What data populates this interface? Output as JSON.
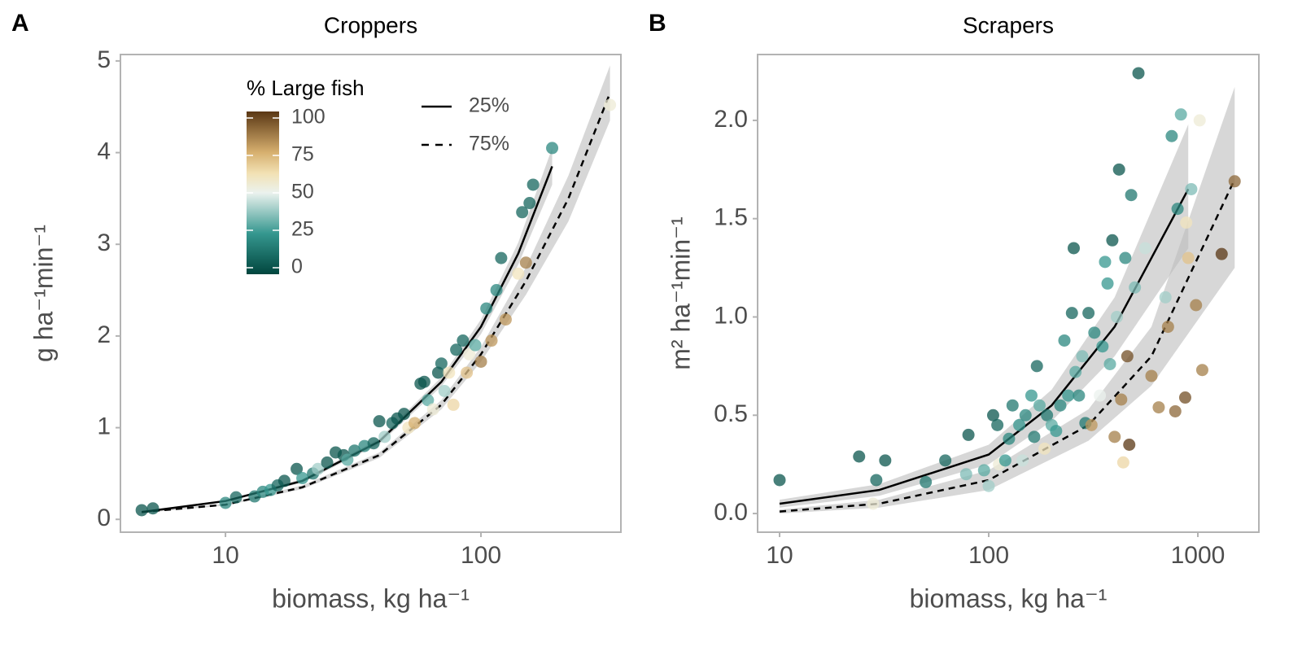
{
  "chart_data": [
    {
      "type": "scatter",
      "panel": "A",
      "title": "Croppers",
      "xlabel": "biomass, kg ha⁻¹",
      "ylabel": "g ha⁻¹min⁻¹",
      "xscale": "log",
      "xlim": [
        3.88,
        353
      ],
      "xticks": [
        10,
        100
      ],
      "ylim": [
        -0.14,
        5.07
      ],
      "yticks": [
        0,
        1,
        2,
        3,
        4,
        5
      ],
      "colorbar": {
        "title": "% Large fish",
        "lim": [
          0,
          100
        ],
        "ticks": [
          0,
          25,
          50,
          75,
          100
        ]
      },
      "points": {
        "x": [
          4.7,
          5.2,
          10,
          11,
          13,
          14,
          15,
          16,
          17,
          19,
          20,
          22,
          23,
          25,
          27,
          29,
          30,
          32,
          35,
          38,
          40,
          42,
          45,
          47,
          50,
          52,
          55,
          58,
          60,
          62,
          65,
          68,
          70,
          72,
          75,
          78,
          80,
          85,
          88,
          90,
          95,
          100,
          105,
          110,
          115,
          120,
          125,
          140,
          145,
          150,
          155,
          160,
          190,
          320
        ],
        "y": [
          0.1,
          0.12,
          0.18,
          0.24,
          0.25,
          0.3,
          0.32,
          0.37,
          0.42,
          0.55,
          0.45,
          0.5,
          0.55,
          0.62,
          0.73,
          0.7,
          0.65,
          0.75,
          0.8,
          0.83,
          1.07,
          0.9,
          1.05,
          1.1,
          1.15,
          1.0,
          1.05,
          1.48,
          1.5,
          1.3,
          1.2,
          1.6,
          1.7,
          1.4,
          1.6,
          1.25,
          1.85,
          1.95,
          1.6,
          1.8,
          1.9,
          1.72,
          2.3,
          1.95,
          2.5,
          2.85,
          2.18,
          2.68,
          3.35,
          2.8,
          3.45,
          3.65,
          4.05,
          4.52
        ],
        "large_fish": [
          5,
          5,
          20,
          10,
          15,
          20,
          25,
          10,
          5,
          5,
          25,
          15,
          40,
          5,
          5,
          5,
          30,
          15,
          20,
          10,
          5,
          40,
          10,
          5,
          5,
          60,
          75,
          5,
          5,
          30,
          55,
          5,
          10,
          40,
          60,
          65,
          10,
          10,
          70,
          55,
          30,
          85,
          20,
          80,
          20,
          10,
          80,
          60,
          10,
          85,
          10,
          10,
          20,
          55
        ]
      },
      "fits": [
        {
          "name": "25%",
          "dash": false,
          "x": [
            4.7,
            10,
            20,
            40,
            70,
            100,
            140,
            190
          ],
          "y": [
            0.08,
            0.2,
            0.42,
            0.85,
            1.5,
            2.1,
            2.9,
            3.85
          ],
          "lower": [
            0.07,
            0.19,
            0.4,
            0.82,
            1.45,
            2.02,
            2.78,
            3.65
          ],
          "upper": [
            0.09,
            0.21,
            0.44,
            0.88,
            1.55,
            2.18,
            3.02,
            4.05
          ]
        },
        {
          "name": "75%",
          "dash": true,
          "x": [
            4.7,
            10,
            20,
            40,
            70,
            100,
            150,
            220,
            320
          ],
          "y": [
            0.08,
            0.16,
            0.35,
            0.7,
            1.25,
            1.8,
            2.6,
            3.5,
            4.65
          ],
          "lower": [
            0.07,
            0.15,
            0.33,
            0.67,
            1.2,
            1.72,
            2.45,
            3.25,
            4.35
          ],
          "upper": [
            0.09,
            0.17,
            0.37,
            0.73,
            1.3,
            1.88,
            2.75,
            3.75,
            4.95
          ]
        }
      ]
    },
    {
      "type": "scatter",
      "panel": "B",
      "title": "Scrapers",
      "xlabel": "biomass, kg ha⁻¹",
      "ylabel": "m² ha⁻¹min⁻¹",
      "xscale": "log",
      "xlim": [
        7.85,
        1958
      ],
      "xticks": [
        10,
        100,
        1000
      ],
      "ylim": [
        -0.095,
        2.335
      ],
      "yticks": [
        {
          "value": 0,
          "label": "0.0"
        },
        0.5,
        {
          "value": 1,
          "label": "1.0"
        },
        1.5,
        {
          "value": 2,
          "label": "2.0"
        }
      ],
      "points": {
        "x": [
          10,
          24,
          29,
          32,
          50,
          62,
          80,
          78,
          95,
          100,
          105,
          110,
          112,
          120,
          125,
          130,
          140,
          145,
          150,
          160,
          165,
          170,
          175,
          185,
          190,
          200,
          210,
          220,
          230,
          240,
          250,
          255,
          260,
          270,
          280,
          290,
          300,
          310,
          320,
          340,
          350,
          360,
          370,
          380,
          390,
          400,
          410,
          420,
          430,
          440,
          450,
          460,
          470,
          480,
          500,
          520,
          560,
          600,
          650,
          700,
          720,
          750,
          780,
          800,
          830,
          870,
          880,
          900,
          930,
          980,
          1020,
          1050,
          1300,
          1500,
          28
        ],
        "y": [
          0.17,
          0.29,
          0.17,
          0.27,
          0.16,
          0.27,
          0.4,
          0.2,
          0.22,
          0.14,
          0.5,
          0.45,
          0.25,
          0.27,
          0.38,
          0.55,
          0.45,
          0.27,
          0.5,
          0.6,
          0.39,
          0.75,
          0.55,
          0.33,
          0.5,
          0.45,
          0.42,
          0.55,
          0.88,
          0.6,
          1.02,
          1.35,
          0.72,
          0.6,
          0.8,
          0.46,
          1.02,
          0.45,
          0.92,
          0.6,
          0.85,
          1.28,
          1.17,
          0.76,
          1.39,
          0.39,
          1.0,
          1.75,
          0.58,
          0.26,
          1.3,
          0.8,
          0.35,
          1.62,
          1.15,
          2.24,
          1.35,
          0.7,
          0.54,
          1.1,
          0.95,
          1.92,
          0.52,
          1.55,
          2.03,
          0.59,
          1.48,
          1.3,
          1.65,
          1.06,
          2.0,
          0.73,
          1.32,
          1.69,
          0.05
        ],
        "large_fish": [
          5,
          5,
          10,
          5,
          15,
          10,
          5,
          35,
          30,
          40,
          5,
          10,
          55,
          25,
          20,
          15,
          25,
          45,
          20,
          25,
          15,
          10,
          30,
          60,
          15,
          30,
          25,
          20,
          20,
          25,
          10,
          5,
          30,
          20,
          35,
          15,
          10,
          80,
          20,
          50,
          25,
          25,
          25,
          30,
          5,
          85,
          40,
          5,
          85,
          65,
          20,
          95,
          100,
          15,
          35,
          5,
          45,
          85,
          85,
          40,
          85,
          20,
          90,
          20,
          30,
          95,
          60,
          70,
          35,
          85,
          55,
          85,
          100,
          90,
          55
        ]
      },
      "fits": [
        {
          "dash": false,
          "x": [
            10,
            30,
            100,
            200,
            400,
            900
          ],
          "y": [
            0.05,
            0.12,
            0.3,
            0.55,
            0.95,
            1.65
          ],
          "lower": [
            0.03,
            0.09,
            0.25,
            0.47,
            0.8,
            1.35
          ],
          "upper": [
            0.07,
            0.15,
            0.35,
            0.63,
            1.1,
            1.98
          ]
        },
        {
          "dash": true,
          "x": [
            10,
            30,
            100,
            300,
            600,
            1500
          ],
          "y": [
            0.01,
            0.05,
            0.17,
            0.45,
            0.8,
            1.7
          ],
          "lower": [
            0.0,
            0.03,
            0.12,
            0.37,
            0.65,
            1.25
          ],
          "upper": [
            0.02,
            0.07,
            0.22,
            0.53,
            0.95,
            2.17
          ]
        }
      ]
    }
  ]
}
